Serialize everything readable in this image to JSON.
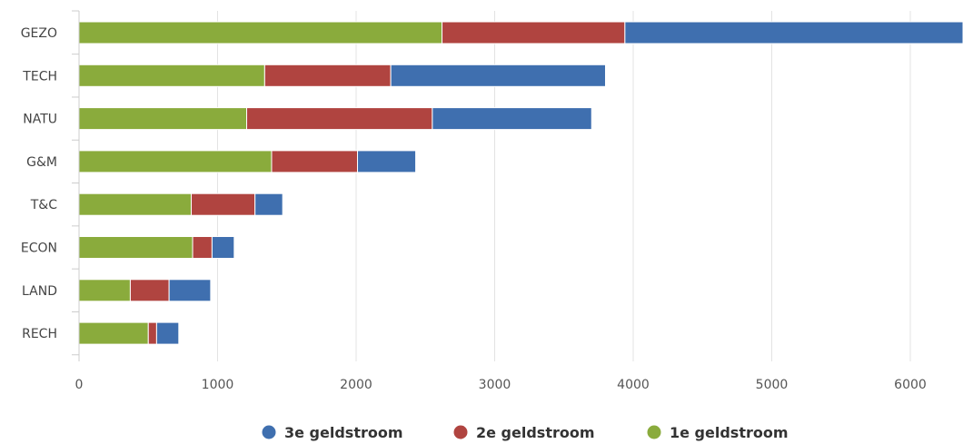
{
  "chart_data": {
    "type": "bar",
    "orientation": "horizontal",
    "stacked": true,
    "categories": [
      "GEZO",
      "TECH",
      "NATU",
      "G&M",
      "T&C",
      "ECON",
      "LAND",
      "RECH"
    ],
    "series": [
      {
        "name": "1e geldstroom",
        "color": "#8aab3c",
        "values": [
          2620,
          1340,
          1210,
          1390,
          810,
          820,
          370,
          500
        ]
      },
      {
        "name": "2e geldstroom",
        "color": "#b04440",
        "values": [
          1320,
          910,
          1340,
          620,
          460,
          140,
          280,
          60
        ]
      },
      {
        "name": "3e geldstroom",
        "color": "#3f6faf",
        "values": [
          2460,
          1550,
          1150,
          420,
          200,
          160,
          300,
          160
        ]
      }
    ],
    "xlim": [
      0,
      6350
    ],
    "xticks": [
      "0",
      "1000",
      "2000",
      "3000",
      "4000",
      "5000",
      "6000"
    ],
    "xtick_values": [
      0,
      1000,
      2000,
      3000,
      4000,
      5000,
      6000
    ],
    "grid": true,
    "legend_position": "bottom",
    "legend_order": [
      "3e geldstroom",
      "2e geldstroom",
      "1e geldstroom"
    ],
    "title": "",
    "xlabel": "",
    "ylabel": ""
  }
}
